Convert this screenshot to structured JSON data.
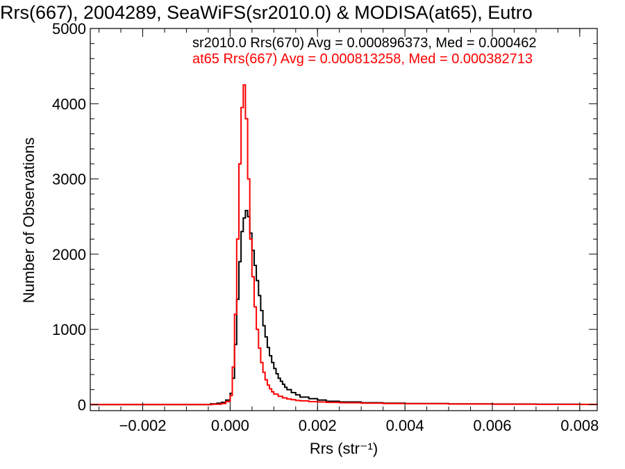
{
  "chart_data": {
    "type": "line",
    "title": "Rrs(667), 2004289, SeaWiFS(sr2010.0) & MODISA(at65), Eutro",
    "xlabel": "Rrs (str⁻¹)",
    "ylabel": "Number of Observations",
    "xlim": [
      -0.0032,
      0.0084
    ],
    "ylim": [
      -80,
      5000
    ],
    "x_ticks": [
      -0.002,
      0.0,
      0.002,
      0.004,
      0.006,
      0.008
    ],
    "x_tick_labels": [
      "−0.002",
      "0.000",
      "0.002",
      "0.004",
      "0.006",
      "0.008"
    ],
    "y_ticks": [
      0,
      1000,
      2000,
      3000,
      4000,
      5000
    ],
    "y_tick_labels": [
      "0",
      "1000",
      "2000",
      "3000",
      "4000",
      "5000"
    ],
    "annotations": [
      {
        "text": "sr2010.0 Rrs(670) Avg = 0.000896373, Med = 0.000462",
        "color": "#000000"
      },
      {
        "text": "at65 Rrs(667) Avg = 0.000813258, Med = 0.000382713",
        "color": "#ff0000"
      }
    ],
    "grid": false,
    "series": [
      {
        "color": "#000000",
        "x": [
          -0.0032,
          -0.0006,
          -0.00045,
          -0.0003,
          -0.0002,
          -0.0001,
          0.0,
          5e-05,
          0.0001,
          0.00015,
          0.0002,
          0.00025,
          0.0003,
          0.00035,
          0.0004,
          0.00045,
          0.0005,
          0.00055,
          0.0006,
          0.00065,
          0.0007,
          0.00075,
          0.0008,
          0.00085,
          0.0009,
          0.00095,
          0.001,
          0.00105,
          0.0011,
          0.00115,
          0.0012,
          0.00125,
          0.0013,
          0.0014,
          0.0015,
          0.0016,
          0.0018,
          0.002,
          0.0022,
          0.0025,
          0.003,
          0.0035,
          0.004,
          0.005,
          0.006,
          0.007,
          0.008,
          0.0084
        ],
        "y": [
          0,
          0,
          10,
          20,
          30,
          60,
          150,
          350,
          800,
          1400,
          1900,
          2300,
          2480,
          2580,
          2500,
          2280,
          2050,
          1850,
          1650,
          1450,
          1250,
          1050,
          900,
          760,
          650,
          560,
          480,
          410,
          350,
          310,
          270,
          230,
          200,
          160,
          130,
          100,
          80,
          60,
          45,
          35,
          25,
          20,
          15,
          10,
          8,
          5,
          3,
          2
        ]
      },
      {
        "color": "#ff0000",
        "x": [
          -0.0032,
          -0.0006,
          -0.0004,
          -0.0002,
          -0.0001,
          0.0,
          5e-05,
          0.0001,
          0.00015,
          0.0002,
          0.00025,
          0.0003,
          0.00035,
          0.0004,
          0.00045,
          0.0005,
          0.00055,
          0.0006,
          0.00065,
          0.0007,
          0.00075,
          0.0008,
          0.00085,
          0.0009,
          0.00095,
          0.001,
          0.0011,
          0.0012,
          0.0013,
          0.0014,
          0.0015,
          0.0016,
          0.0018,
          0.002,
          0.0022,
          0.0025,
          0.003,
          0.0035,
          0.004,
          0.005,
          0.006,
          0.007,
          0.008,
          0.0084
        ],
        "y": [
          0,
          0,
          5,
          15,
          40,
          120,
          500,
          1200,
          2200,
          3200,
          3950,
          4250,
          3800,
          3000,
          2200,
          1700,
          1300,
          1000,
          750,
          560,
          430,
          330,
          260,
          210,
          170,
          140,
          110,
          90,
          75,
          65,
          55,
          50,
          40,
          35,
          30,
          25,
          20,
          15,
          12,
          8,
          5,
          3,
          2,
          2
        ]
      }
    ]
  }
}
